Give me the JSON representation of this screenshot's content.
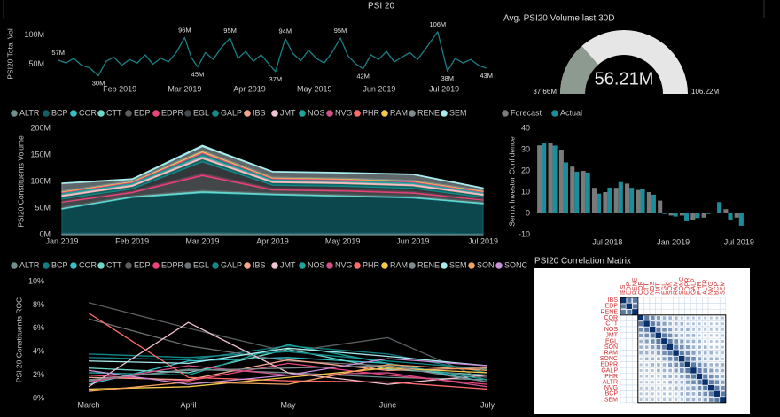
{
  "chart_data": [
    {
      "type": "line",
      "title": "PSI 20",
      "y_label": "PSI20 Total Vol",
      "color": "#1b7f86",
      "x": [
        0.05,
        0.17,
        0.29,
        0.41,
        0.53,
        0.67,
        0.79,
        0.91,
        1.03,
        1.15,
        1.27,
        1.39,
        1.51,
        1.63,
        1.75,
        1.87,
        2.0,
        2.1,
        2.2,
        2.32,
        2.44,
        2.56,
        2.7,
        2.82,
        2.94,
        3.06,
        3.18,
        3.3,
        3.4,
        3.55,
        3.67,
        3.79,
        3.91,
        4.03,
        4.15,
        4.27,
        4.4,
        4.52,
        4.64,
        4.75,
        4.87,
        4.99,
        5.11,
        5.23,
        5.35,
        5.47,
        5.59,
        5.71,
        5.9,
        6.05,
        6.17,
        6.29,
        6.41,
        6.53,
        6.65
      ],
      "values": [
        57,
        52,
        60,
        48,
        44,
        30,
        55,
        62,
        48,
        58,
        52,
        66,
        50,
        60,
        54,
        70,
        96,
        62,
        45,
        70,
        58,
        78,
        95,
        60,
        72,
        55,
        66,
        50,
        37,
        94,
        68,
        56,
        74,
        60,
        52,
        70,
        95,
        64,
        50,
        42,
        66,
        58,
        72,
        54,
        62,
        70,
        58,
        76,
        106,
        38,
        60,
        52,
        58,
        48,
        43
      ],
      "xlim": [
        0,
        6.75
      ],
      "xticks": [
        {
          "value": 1,
          "label": "Feb 2019"
        },
        {
          "value": 2,
          "label": "Mar 2019"
        },
        {
          "value": 3,
          "label": "Apr 2019"
        },
        {
          "value": 4,
          "label": "May 2019"
        },
        {
          "value": 5,
          "label": "Jun 2019"
        },
        {
          "value": 6,
          "label": "Jul 2019"
        }
      ],
      "ylim": [
        20,
        115
      ],
      "yticks": [
        {
          "value": 50,
          "label": "50M"
        },
        {
          "value": 100,
          "label": "100M"
        }
      ],
      "annotations": [
        {
          "x": 0.05,
          "y": 57,
          "label": "57M"
        },
        {
          "x": 0.67,
          "y": 30,
          "label": "30M"
        },
        {
          "x": 2.0,
          "y": 96,
          "label": "96M"
        },
        {
          "x": 2.2,
          "y": 45,
          "label": "45M"
        },
        {
          "x": 2.7,
          "y": 95,
          "label": "95M"
        },
        {
          "x": 3.4,
          "y": 37,
          "label": "37M"
        },
        {
          "x": 3.55,
          "y": 94,
          "label": "94M"
        },
        {
          "x": 4.4,
          "y": 95,
          "label": "95M"
        },
        {
          "x": 4.75,
          "y": 42,
          "label": "42M"
        },
        {
          "x": 5.9,
          "y": 106,
          "label": "106M"
        },
        {
          "x": 6.05,
          "y": 38,
          "label": "38M"
        },
        {
          "x": 6.65,
          "y": 43,
          "label": "43M"
        }
      ]
    },
    {
      "type": "gauge",
      "title": "Avg. PSI20 Volume last 30D",
      "value": 56.21,
      "value_label": "56.21M",
      "min": 37.66,
      "min_label": "37.66M",
      "max": 106.22,
      "max_label": "106.22M",
      "color": "#8c9a90"
    },
    {
      "type": "area",
      "y_label": "PSI20 Constituents Volume",
      "categories": [
        "Jan 2019",
        "Feb 2019",
        "Mar 2019",
        "Apr 2019",
        "May 2019",
        "Jun 2019",
        "Jul 2019"
      ],
      "ylim": [
        0,
        200
      ],
      "yticks": [
        {
          "value": 0,
          "label": "0M"
        },
        {
          "value": 50,
          "label": "50M"
        },
        {
          "value": 100,
          "label": "100M"
        },
        {
          "value": 150,
          "label": "150M"
        },
        {
          "value": 200,
          "label": "200M"
        }
      ],
      "series": [
        {
          "name": "ALTR",
          "color": "#6f8f8f",
          "values": [
            3,
            3,
            4,
            3,
            3,
            3,
            2
          ]
        },
        {
          "name": "BCP",
          "color": "#0f5f66",
          "values": [
            45,
            67,
            75,
            72,
            69,
            66,
            56
          ]
        },
        {
          "name": "COR",
          "color": "#35c0c8",
          "values": [
            1,
            1,
            1,
            1,
            1,
            1,
            1
          ]
        },
        {
          "name": "CTT",
          "color": "#6fd6c8",
          "values": [
            2,
            2,
            3,
            2,
            2,
            2,
            2
          ]
        },
        {
          "name": "EDP",
          "color": "#5a5f63",
          "values": [
            10,
            6,
            28,
            6,
            7,
            6,
            4
          ]
        },
        {
          "name": "EDPR",
          "color": "#e8447a",
          "values": [
            2,
            3,
            4,
            3,
            3,
            3,
            2
          ]
        },
        {
          "name": "EGL",
          "color": "#44494d",
          "values": [
            4,
            4,
            22,
            6,
            6,
            6,
            3
          ]
        },
        {
          "name": "GALP",
          "color": "#138a8a",
          "values": [
            5,
            5,
            6,
            5,
            5,
            5,
            4
          ]
        },
        {
          "name": "IBS",
          "color": "#f4a58a",
          "values": [
            1,
            1,
            1,
            1,
            1,
            1,
            1
          ]
        },
        {
          "name": "JMT",
          "color": "#f3c4d0",
          "values": [
            3,
            3,
            4,
            3,
            3,
            3,
            3
          ]
        },
        {
          "name": "NOS",
          "color": "#1fa5a0",
          "values": [
            3,
            3,
            5,
            3,
            3,
            3,
            2
          ]
        },
        {
          "name": "NVG",
          "color": "#d1508a",
          "values": [
            1,
            1,
            2,
            1,
            1,
            1,
            1
          ]
        },
        {
          "name": "PHR",
          "color": "#ff6b6b",
          "values": [
            1,
            1,
            1,
            1,
            1,
            1,
            1
          ]
        },
        {
          "name": "RAM",
          "color": "#f2c94c",
          "values": [
            1,
            1,
            2,
            1,
            1,
            1,
            1
          ]
        },
        {
          "name": "RENE",
          "color": "#7d8a8c",
          "values": [
            14,
            3,
            8,
            10,
            10,
            11,
            4
          ]
        },
        {
          "name": "SEM",
          "color": "#a8ecee",
          "values": [
            1,
            1,
            2,
            1,
            1,
            1,
            1
          ]
        }
      ]
    },
    {
      "type": "bar",
      "y_label": "Sentix Investor Confidence",
      "categories": [
        null,
        null,
        null,
        null,
        null,
        null,
        "Jul 2018",
        null,
        null,
        null,
        null,
        null,
        "Jan 2019",
        null,
        null,
        null,
        null,
        null,
        "Jul 2019"
      ],
      "ylim": [
        -10,
        40
      ],
      "yticks": [
        -10,
        0,
        10,
        20,
        30,
        40
      ],
      "series": [
        {
          "name": "Forecast",
          "color": "#7a7a7a",
          "values": [
            32,
            33,
            30,
            22,
            20,
            12,
            10,
            12,
            14,
            11,
            10,
            6,
            -1,
            -1,
            -3,
            -2,
            0,
            2,
            -2
          ]
        },
        {
          "name": "Actual",
          "color": "#1b8e9b",
          "values": [
            32.9,
            31.9,
            24,
            19.6,
            19.2,
            9.3,
            12.1,
            14.7,
            12,
            11.4,
            8.8,
            -0.3,
            -1.5,
            -3.7,
            -2.2,
            -0.3,
            5.3,
            -3.3,
            -5.8
          ]
        }
      ]
    },
    {
      "type": "line",
      "y_label": "PSI 20 Constituents ROC",
      "categories": [
        "March",
        "April",
        "May",
        "June",
        "July"
      ],
      "ylim": [
        0,
        10
      ],
      "yticks": [
        {
          "value": 0,
          "label": "0%"
        },
        {
          "value": 2,
          "label": "2%"
        },
        {
          "value": 4,
          "label": "4%"
        },
        {
          "value": 6,
          "label": "6%"
        },
        {
          "value": 8,
          "label": "8%"
        },
        {
          "value": 10,
          "label": "10%"
        }
      ],
      "series": [
        {
          "name": "ALTR",
          "color": "#6f8f8f",
          "values": [
            1.5,
            2.5,
            2.2,
            1.8,
            1.6
          ]
        },
        {
          "name": "BCP",
          "color": "#0f7f86",
          "values": [
            3.5,
            3.3,
            4.5,
            3.8,
            2.2
          ]
        },
        {
          "name": "COR",
          "color": "#35c0c8",
          "values": [
            1.2,
            3.2,
            3.5,
            3.0,
            1.4
          ]
        },
        {
          "name": "CTT",
          "color": "#6fd6c8",
          "values": [
            2.6,
            2.2,
            4.2,
            2.5,
            2.0
          ]
        },
        {
          "name": "EDP",
          "color": "#5a5f63",
          "values": [
            8.2,
            6.0,
            4.0,
            5.2,
            1.5
          ]
        },
        {
          "name": "EDPR",
          "color": "#e8447a",
          "values": [
            2.0,
            1.5,
            3.0,
            2.0,
            1.2
          ]
        },
        {
          "name": "EGL",
          "color": "#6b7074",
          "values": [
            6.8,
            4.5,
            3.2,
            2.8,
            1.8
          ]
        },
        {
          "name": "GALP",
          "color": "#138a8a",
          "values": [
            3.8,
            3.5,
            4.0,
            3.2,
            2.5
          ]
        },
        {
          "name": "IBS",
          "color": "#f4a58a",
          "values": [
            1.8,
            1.6,
            3.3,
            2.4,
            2.6
          ]
        },
        {
          "name": "JMT",
          "color": "#f3c4d0",
          "values": [
            1.0,
            6.5,
            2.2,
            1.2,
            2.0
          ]
        },
        {
          "name": "NOS",
          "color": "#1fa5a0",
          "values": [
            2.2,
            2.0,
            4.6,
            3.0,
            1.6
          ]
        },
        {
          "name": "NVG",
          "color": "#d1508a",
          "values": [
            1.4,
            2.8,
            2.0,
            2.2,
            1.0
          ]
        },
        {
          "name": "PHR",
          "color": "#ff6b6b",
          "values": [
            7.3,
            1.8,
            1.5,
            1.4,
            0.8
          ]
        },
        {
          "name": "RAM",
          "color": "#f2c94c",
          "values": [
            0.8,
            1.0,
            1.8,
            2.6,
            2.2
          ]
        },
        {
          "name": "RENE",
          "color": "#7d8a8c",
          "values": [
            1.6,
            2.4,
            2.6,
            2.8,
            1.4
          ]
        },
        {
          "name": "SEM",
          "color": "#a8ecee",
          "values": [
            3.2,
            3.0,
            4.3,
            3.6,
            2.8
          ]
        },
        {
          "name": "SON",
          "color": "#f0a060",
          "values": [
            0.6,
            1.4,
            1.2,
            2.9,
            2.4
          ]
        },
        {
          "name": "SONC",
          "color": "#c890d8",
          "values": [
            2.4,
            1.2,
            2.0,
            3.4,
            2.8
          ]
        }
      ]
    },
    {
      "type": "heatmap",
      "title": "PSI20 Correlation Matrix",
      "labels": [
        "IBS",
        "EDP",
        "RENE",
        "COR",
        "CTT",
        "NOS",
        "JMT",
        "EGL",
        "SON",
        "RAM",
        "SONC",
        "EDPR",
        "GALP",
        "PHR",
        "ALTR",
        "NVG",
        "BCP",
        "SEM"
      ],
      "values": [
        [
          1,
          0.6,
          0.6,
          0,
          0,
          0,
          0,
          0,
          0,
          0,
          0,
          0,
          0,
          0,
          0,
          0,
          0,
          0
        ],
        [
          0.6,
          1,
          0.6,
          0,
          0,
          0,
          0,
          0,
          0,
          0,
          0,
          0,
          0,
          0,
          0,
          0,
          0,
          0
        ],
        [
          0.6,
          0.6,
          1,
          0,
          0,
          0,
          0,
          0,
          0,
          0,
          0,
          0,
          0,
          0,
          0,
          0,
          0,
          0
        ],
        [
          0,
          0,
          0,
          1,
          0.6,
          0.5,
          0.4,
          0.3,
          0.3,
          0.3,
          0.2,
          0.2,
          0.2,
          0.2,
          0.2,
          0.2,
          0.2,
          0.2
        ],
        [
          0,
          0,
          0,
          0.6,
          1,
          0.6,
          0.5,
          0.4,
          0.3,
          0.3,
          0.3,
          0.2,
          0.2,
          0.2,
          0.2,
          0.2,
          0.2,
          0.2
        ],
        [
          0,
          0,
          0,
          0.5,
          0.6,
          1,
          0.6,
          0.5,
          0.4,
          0.3,
          0.3,
          0.3,
          0.2,
          0.2,
          0.2,
          0.2,
          0.2,
          0.2
        ],
        [
          0,
          0,
          0,
          0.4,
          0.5,
          0.6,
          1,
          0.6,
          0.5,
          0.4,
          0.3,
          0.3,
          0.3,
          0.2,
          0.2,
          0.2,
          0.2,
          0.2
        ],
        [
          0,
          0,
          0,
          0.3,
          0.4,
          0.5,
          0.6,
          1,
          0.6,
          0.5,
          0.4,
          0.3,
          0.3,
          0.3,
          0.2,
          0.2,
          0.2,
          0.2
        ],
        [
          0,
          0,
          0,
          0.3,
          0.3,
          0.4,
          0.5,
          0.6,
          1,
          0.6,
          0.5,
          0.4,
          0.3,
          0.3,
          0.3,
          0.2,
          0.2,
          0.2
        ],
        [
          0,
          0,
          0,
          0.3,
          0.3,
          0.3,
          0.4,
          0.5,
          0.6,
          1,
          0.6,
          0.5,
          0.4,
          0.3,
          0.3,
          0.3,
          0.2,
          0.2
        ],
        [
          0,
          0,
          0,
          0.2,
          0.3,
          0.3,
          0.3,
          0.4,
          0.5,
          0.6,
          1,
          0.6,
          0.5,
          0.4,
          0.3,
          0.3,
          0.3,
          0.2
        ],
        [
          0,
          0,
          0,
          0.2,
          0.2,
          0.3,
          0.3,
          0.3,
          0.4,
          0.5,
          0.6,
          1,
          0.6,
          0.5,
          0.4,
          0.3,
          0.3,
          0.3
        ],
        [
          0,
          0,
          0,
          0.2,
          0.2,
          0.2,
          0.3,
          0.3,
          0.3,
          0.4,
          0.5,
          0.6,
          1,
          0.6,
          0.5,
          0.4,
          0.3,
          0.3
        ],
        [
          0,
          0,
          0,
          0.2,
          0.2,
          0.2,
          0.2,
          0.3,
          0.3,
          0.3,
          0.4,
          0.5,
          0.6,
          1,
          0.6,
          0.5,
          0.4,
          0.3
        ],
        [
          0,
          0,
          0,
          0.2,
          0.2,
          0.2,
          0.2,
          0.2,
          0.3,
          0.3,
          0.3,
          0.4,
          0.5,
          0.6,
          1,
          0.6,
          0.5,
          0.4
        ],
        [
          0,
          0,
          0,
          0.2,
          0.2,
          0.2,
          0.2,
          0.2,
          0.2,
          0.3,
          0.3,
          0.3,
          0.4,
          0.5,
          0.6,
          1,
          0.6,
          0.5
        ],
        [
          0,
          0,
          0,
          0.2,
          0.2,
          0.2,
          0.2,
          0.2,
          0.2,
          0.2,
          0.3,
          0.3,
          0.3,
          0.4,
          0.5,
          0.6,
          1,
          0.6
        ],
        [
          0,
          0,
          0,
          0.2,
          0.2,
          0.2,
          0.2,
          0.2,
          0.2,
          0.2,
          0.2,
          0.3,
          0.3,
          0.3,
          0.4,
          0.5,
          0.6,
          1
        ]
      ]
    }
  ]
}
